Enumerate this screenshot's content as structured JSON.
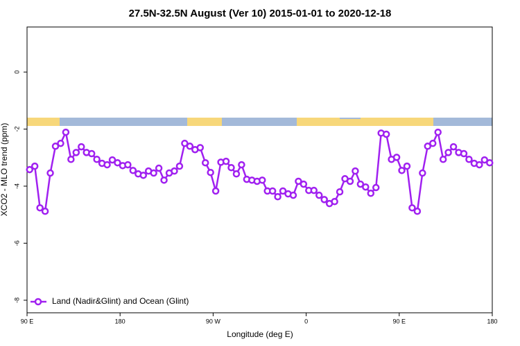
{
  "chart_data": {
    "type": "line",
    "title": "27.5N-32.5N August (Ver 10)   2015-01-01 to 2020-12-18",
    "x_label": "Longitude (deg E)",
    "y_label": "XCO2 - MLO trend (ppm)",
    "xlim": [
      90,
      540
    ],
    "ylim": [
      -8.44,
      1.58
    ],
    "xticks": [
      {
        "value": 90,
        "label": "90 E"
      },
      {
        "value": 180,
        "label": "180"
      },
      {
        "value": 270,
        "label": "90 W"
      },
      {
        "value": 360,
        "label": "0"
      },
      {
        "value": 450,
        "label": "90 E"
      },
      {
        "value": 540,
        "label": "180"
      }
    ],
    "yticks": [
      0,
      -2,
      -4,
      -6,
      -8
    ],
    "legend_position": "bottom-left",
    "x": [
      92.5,
      97.5,
      102.5,
      107.5,
      112.5,
      117.5,
      122.5,
      127.5,
      132.5,
      137.5,
      142.5,
      147.5,
      152.5,
      157.5,
      162.5,
      167.5,
      172.5,
      177.5,
      182.5,
      187.5,
      192.5,
      197.5,
      202.5,
      207.5,
      212.5,
      217.5,
      222.5,
      227.5,
      232.5,
      237.5,
      242.5,
      247.5,
      252.5,
      257.5,
      262.5,
      267.5,
      272.5,
      277.5,
      282.5,
      287.5,
      292.5,
      297.5,
      302.5,
      307.5,
      312.5,
      317.5,
      322.5,
      327.5,
      332.5,
      337.5,
      342.5,
      347.5,
      352.5,
      357.5,
      362.5,
      367.5,
      372.5,
      377.5,
      382.5,
      387.5,
      392.5,
      397.5,
      402.5,
      407.5,
      412.5,
      417.5,
      422.5,
      427.5,
      432.5,
      437.5,
      442.5,
      447.5,
      452.5,
      457.5,
      462.5,
      467.5,
      472.5,
      477.5,
      482.5,
      487.5,
      492.5,
      497.5,
      502.5,
      507.5,
      512.5,
      517.5,
      522.5,
      527.5,
      532.5,
      537.5
    ],
    "series": [
      {
        "name": "Land (Nadir&Glint) and Ocean (Glint)",
        "color": "#a020f0",
        "values": [
          -3.42,
          -3.3,
          -4.76,
          -4.88,
          -3.54,
          -2.6,
          -2.5,
          -2.11,
          -3.06,
          -2.82,
          -2.62,
          -2.82,
          -2.86,
          -3.06,
          -3.2,
          -3.25,
          -3.08,
          -3.18,
          -3.28,
          -3.25,
          -3.45,
          -3.57,
          -3.62,
          -3.47,
          -3.54,
          -3.37,
          -3.79,
          -3.54,
          -3.47,
          -3.3,
          -2.5,
          -2.6,
          -2.72,
          -2.65,
          -3.18,
          -3.52,
          -4.17,
          -3.16,
          -3.13,
          -3.35,
          -3.57,
          -3.25,
          -3.76,
          -3.79,
          -3.83,
          -3.79,
          -4.17,
          -4.17,
          -4.37,
          -4.17,
          -4.27,
          -4.32,
          -3.83,
          -3.93,
          -4.15,
          -4.15,
          -4.32,
          -4.47,
          -4.61,
          -4.54,
          -4.2,
          -3.74,
          -3.83,
          -3.47,
          -3.93,
          -4.03,
          -4.25,
          -4.05,
          -2.14,
          -2.18,
          -3.06,
          -2.99,
          -3.45,
          -3.3,
          -4.76,
          -4.88,
          -3.54,
          -2.6,
          -2.5,
          -2.11,
          -3.06,
          -2.82,
          -2.62,
          -2.82,
          -2.86,
          -3.06,
          -3.2,
          -3.25,
          -3.08,
          -3.18
        ]
      }
    ]
  }
}
